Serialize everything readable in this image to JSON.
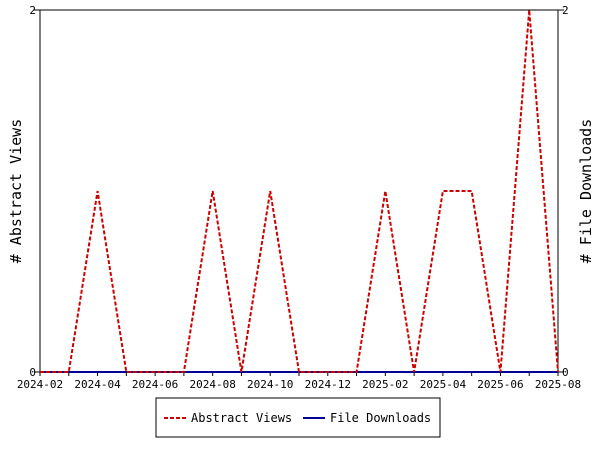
{
  "chart_data": {
    "type": "line",
    "x": [
      "2024-02",
      "2024-03",
      "2024-04",
      "2024-05",
      "2024-06",
      "2024-07",
      "2024-08",
      "2024-09",
      "2024-10",
      "2024-11",
      "2024-12",
      "2025-01",
      "2025-02",
      "2025-03",
      "2025-04",
      "2025-05",
      "2025-06",
      "2025-07",
      "2025-08"
    ],
    "x_tick_labels": [
      "2024-02",
      "2024-04",
      "2024-06",
      "2024-08",
      "2024-10",
      "2024-12",
      "2025-02",
      "2025-04",
      "2025-06",
      "2025-08"
    ],
    "series": [
      {
        "name": "Abstract Views",
        "axis": "left",
        "color": "#cc0000",
        "dash": "dashed",
        "values": [
          0,
          0,
          1,
          0,
          0,
          0,
          1,
          0,
          1,
          0,
          0,
          0,
          1,
          0,
          1,
          1,
          0,
          2,
          0
        ]
      },
      {
        "name": "File Downloads",
        "axis": "right",
        "color": "#000099",
        "dash": "solid",
        "values": [
          0,
          0,
          0,
          0,
          0,
          0,
          0,
          0,
          0,
          0,
          0,
          0,
          0,
          0,
          0,
          0,
          0,
          0,
          0
        ]
      }
    ],
    "ylabel_left": "# Abstract Views",
    "ylabel_right": "# File Downloads",
    "ylim_left": [
      0,
      2
    ],
    "ylim_right": [
      0,
      2
    ],
    "y_ticks_left": [
      "0",
      "2"
    ],
    "y_ticks_right": [
      "0",
      "2"
    ],
    "grid": false,
    "legend_position": "bottom-center"
  }
}
